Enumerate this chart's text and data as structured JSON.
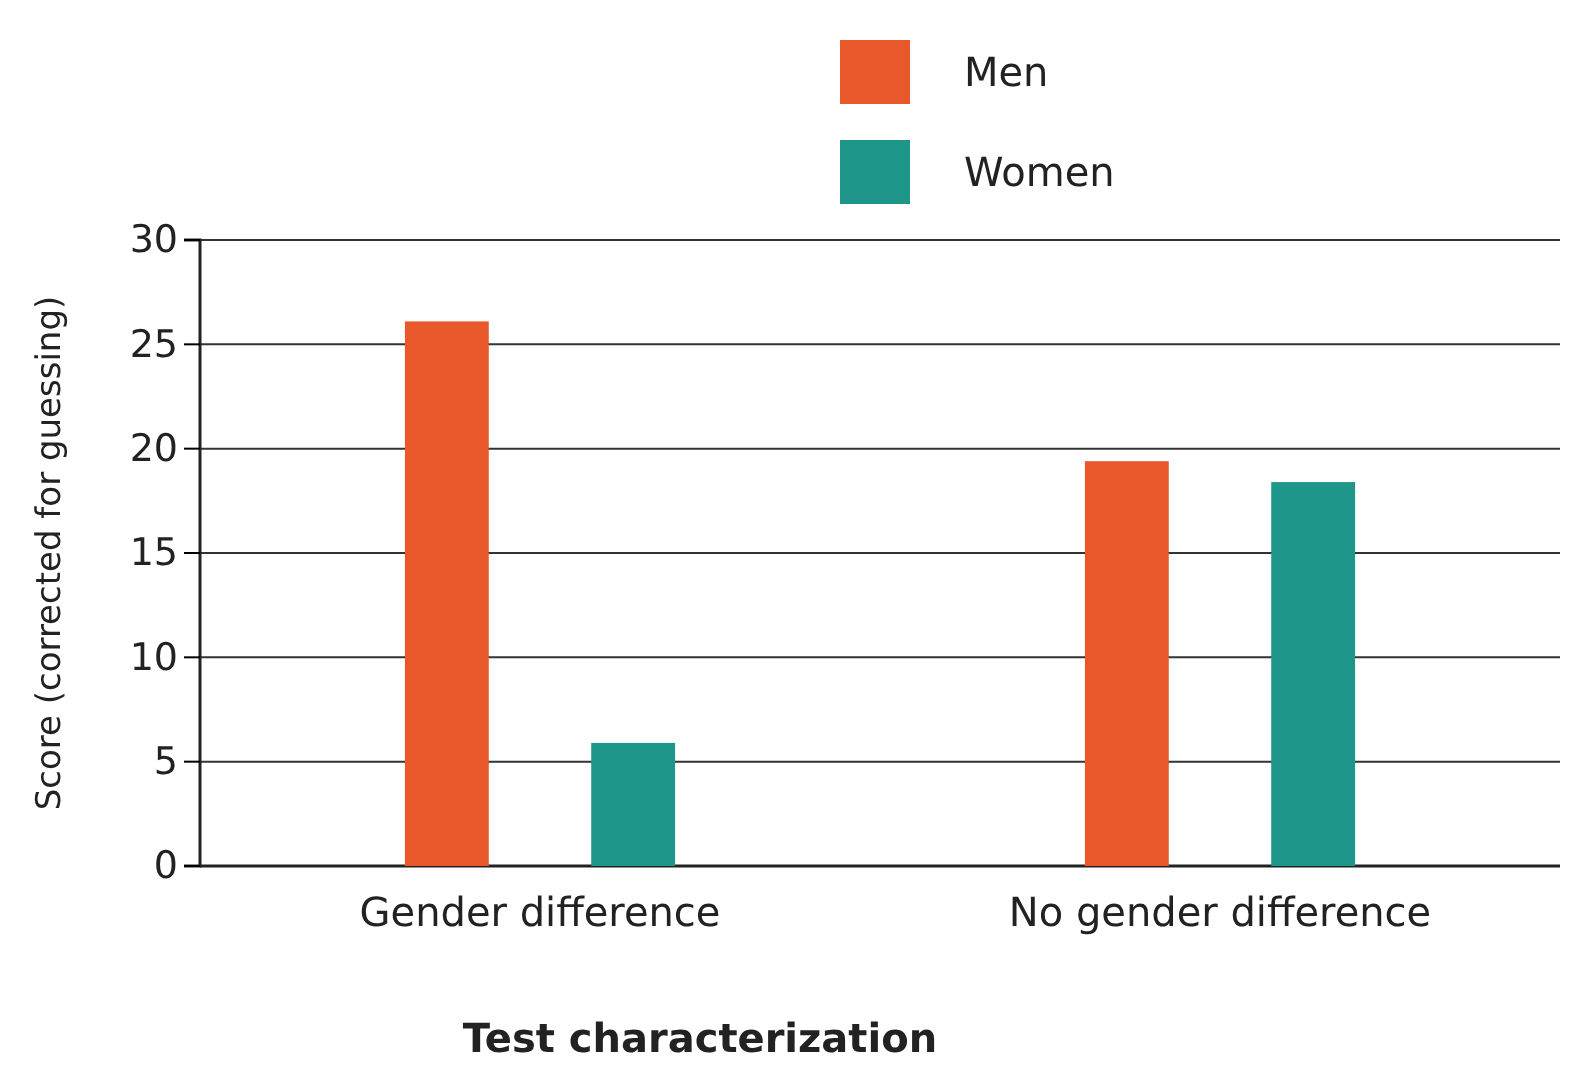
{
  "chart_data": {
    "type": "bar",
    "xlabel": "Test characterization",
    "ylabel": "Score (corrected for guessing)",
    "categories": [
      "Gender difference",
      "No gender difference"
    ],
    "series": [
      {
        "name": "Men",
        "color": "#e8582a",
        "values": [
          26.1,
          19.4
        ]
      },
      {
        "name": "Women",
        "color": "#1f968a",
        "values": [
          5.9,
          18.4
        ]
      }
    ],
    "ylim": [
      0,
      30
    ],
    "yticks": [
      0,
      5,
      10,
      15,
      20,
      25,
      30
    ],
    "grid": "y",
    "legend": "top"
  }
}
